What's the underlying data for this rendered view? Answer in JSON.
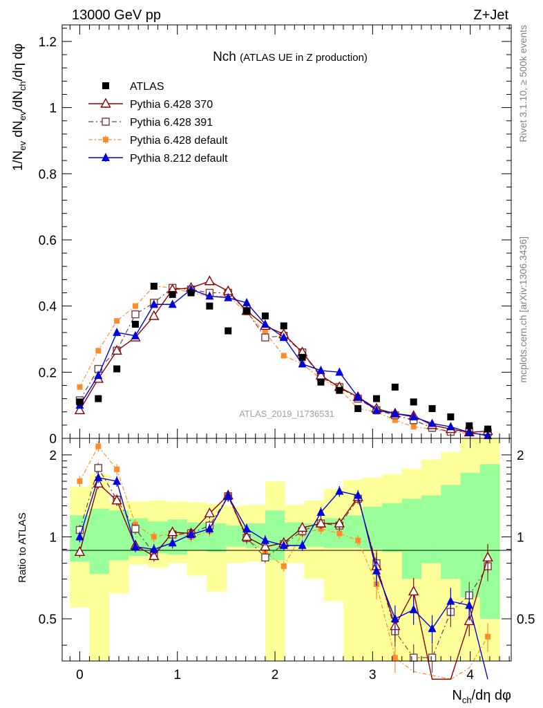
{
  "header": {
    "energy": "13000 GeV pp",
    "process": "Z+Jet"
  },
  "side_labels": {
    "rivet": "Rivet 3.1.10, ≥ 500k events",
    "site": "mcplots.cern.ch [arXiv:1306.3436]"
  },
  "watermark": "ATLAS_2019_I1736531",
  "colors": {
    "atlas": "#000000",
    "p370": "#8b0000",
    "p391": "#6e4040",
    "p6def": "#ff8c2a",
    "p8": "#0000dd",
    "band_inner": "#99ff99",
    "band_outer": "#ffff99"
  },
  "chart_data": [
    {
      "type": "scatter",
      "title": "Nch",
      "subtitle": "(ATLAS UE in Z production)",
      "ylabel": "1/N_ev dN_ev/dN_ch/dη dφ",
      "ylim": [
        0,
        1.25
      ],
      "yticks": [
        "0",
        "0.2",
        "0.4",
        "0.6",
        "0.8",
        "1",
        "1.2"
      ],
      "x": [
        0.0,
        0.19,
        0.38,
        0.57,
        0.76,
        0.95,
        1.14,
        1.33,
        1.52,
        1.71,
        1.9,
        2.09,
        2.28,
        2.47,
        2.66,
        2.85,
        3.04,
        3.23,
        3.42,
        3.61,
        3.8,
        3.99,
        4.18
      ],
      "series": [
        {
          "name": "ATLAS",
          "key": "atlas",
          "marker": "square-filled",
          "values": [
            0.11,
            0.12,
            0.21,
            0.345,
            0.46,
            0.435,
            0.44,
            0.4,
            0.325,
            0.385,
            0.37,
            0.34,
            0.245,
            0.17,
            0.145,
            0.09,
            0.12,
            0.155,
            0.11,
            0.09,
            0.065,
            0.038,
            0.028
          ]
        },
        {
          "name": "Pythia 6.428 370",
          "key": "p370",
          "marker": "triangle-open",
          "values": [
            0.085,
            0.18,
            0.265,
            0.305,
            0.37,
            0.45,
            0.455,
            0.475,
            0.445,
            0.385,
            0.34,
            0.315,
            0.26,
            0.19,
            0.155,
            0.125,
            0.09,
            0.075,
            0.068,
            0.04,
            0.028,
            0.018,
            0.022
          ]
        },
        {
          "name": "Pythia 6.428 391",
          "key": "p391",
          "marker": "square-open",
          "values": [
            0.115,
            0.21,
            0.265,
            0.375,
            0.41,
            0.455,
            0.45,
            0.44,
            0.44,
            0.385,
            0.305,
            0.31,
            0.26,
            0.185,
            0.155,
            0.12,
            0.085,
            0.07,
            0.055,
            0.032,
            0.02,
            0.022,
            0.018
          ]
        },
        {
          "name": "Pythia 6.428 default",
          "key": "p6def",
          "marker": "square-small",
          "values": [
            0.155,
            0.265,
            0.355,
            0.4,
            0.46,
            0.455,
            0.44,
            0.43,
            0.43,
            0.38,
            0.32,
            0.25,
            0.225,
            0.18,
            0.15,
            0.09,
            0.08,
            0.055,
            0.035,
            0.028,
            0.02,
            0.015,
            0.012
          ]
        },
        {
          "name": "Pythia 8.212 default",
          "key": "p8",
          "marker": "triangle-filled",
          "values": [
            0.1,
            0.19,
            0.32,
            0.31,
            0.405,
            0.405,
            0.45,
            0.43,
            0.425,
            0.41,
            0.345,
            0.305,
            0.225,
            0.205,
            0.2,
            0.125,
            0.085,
            0.075,
            0.065,
            0.045,
            0.035,
            0.018,
            0.008
          ]
        }
      ]
    },
    {
      "type": "line",
      "ylabel": "Ratio to ATLAS",
      "xlabel": "N_ch/dη dφ",
      "ylim": [
        0.35,
        2.3
      ],
      "xlim": [
        -0.18,
        4.42
      ],
      "yticks": [
        "0.5",
        "1",
        "2"
      ],
      "xticks": [
        "0",
        "1",
        "2",
        "3",
        "4"
      ],
      "band_bins": [
        -0.1,
        0.1,
        0.3,
        0.5,
        0.7,
        0.9,
        1.1,
        1.3,
        1.5,
        1.7,
        1.9,
        2.1,
        2.3,
        2.5,
        2.7,
        2.9,
        3.1,
        3.3,
        3.5,
        3.7,
        3.9,
        4.1,
        4.3
      ],
      "band_inner_lo": [
        0.81,
        0.73,
        0.82,
        0.85,
        0.87,
        0.86,
        0.89,
        0.88,
        0.92,
        0.91,
        0.82,
        0.92,
        0.92,
        0.91,
        0.91,
        0.9,
        0.88,
        0.7,
        0.8,
        0.7,
        0.6,
        0.5
      ],
      "band_inner_hi": [
        1.2,
        1.27,
        1.25,
        1.17,
        1.14,
        1.16,
        1.13,
        1.12,
        1.1,
        1.12,
        1.25,
        1.13,
        1.12,
        1.17,
        1.2,
        1.29,
        1.33,
        1.38,
        1.42,
        1.55,
        1.72,
        1.85
      ],
      "band_outer_lo": [
        0.55,
        0.35,
        0.62,
        0.79,
        0.77,
        0.8,
        0.72,
        0.63,
        0.8,
        0.81,
        0.35,
        0.8,
        0.7,
        0.58,
        0.35,
        0.35,
        0.35,
        0.35,
        0.35,
        0.35,
        0.35,
        0.35
      ],
      "band_outer_hi": [
        1.53,
        1.7,
        1.35,
        1.35,
        1.36,
        1.35,
        1.34,
        1.32,
        1.3,
        1.31,
        1.6,
        1.31,
        1.36,
        1.5,
        1.62,
        1.65,
        1.7,
        1.78,
        1.92,
        2.05,
        2.3,
        2.3
      ],
      "x": [
        0.0,
        0.19,
        0.38,
        0.57,
        0.76,
        0.95,
        1.14,
        1.33,
        1.52,
        1.71,
        1.9,
        2.09,
        2.28,
        2.47,
        2.66,
        2.85,
        3.04,
        3.23,
        3.42,
        3.61,
        3.8,
        3.99,
        4.18
      ],
      "series": [
        {
          "name": "Pythia 6.428 370",
          "key": "p370",
          "values": [
            0.88,
            1.57,
            1.36,
            0.93,
            0.85,
            1.04,
            1.03,
            1.22,
            1.42,
            1.0,
            0.92,
            0.95,
            1.08,
            1.12,
            1.12,
            1.4,
            0.78,
            0.47,
            0.63,
            0.3,
            0.3,
            0.49,
            0.84
          ]
        },
        {
          "name": "Pythia 6.428 391",
          "key": "p391",
          "values": [
            1.06,
            1.79,
            1.37,
            1.07,
            0.87,
            1.02,
            1.03,
            1.1,
            1.41,
            0.99,
            0.84,
            0.94,
            1.05,
            1.12,
            1.1,
            1.38,
            0.8,
            0.45,
            0.36,
            0.36,
            0.53,
            0.61,
            0.78
          ]
        },
        {
          "name": "Pythia 6.428 default",
          "key": "p6def",
          "values": [
            1.6,
            2.15,
            1.77,
            1.11,
            1.0,
            1.03,
            1.0,
            1.05,
            1.41,
            0.98,
            0.88,
            0.78,
            1.03,
            1.07,
            1.03,
            0.97,
            0.67,
            0.36,
            0.32,
            0.31,
            0.3,
            0.33,
            0.43
          ]
        },
        {
          "name": "Pythia 8.212 default",
          "key": "p8",
          "values": [
            1.0,
            1.65,
            1.6,
            0.92,
            0.9,
            0.95,
            1.02,
            1.07,
            1.41,
            1.07,
            0.97,
            0.93,
            0.93,
            1.23,
            1.47,
            1.42,
            0.75,
            0.5,
            0.54,
            0.46,
            0.58,
            0.56,
            0.3
          ]
        }
      ]
    }
  ]
}
